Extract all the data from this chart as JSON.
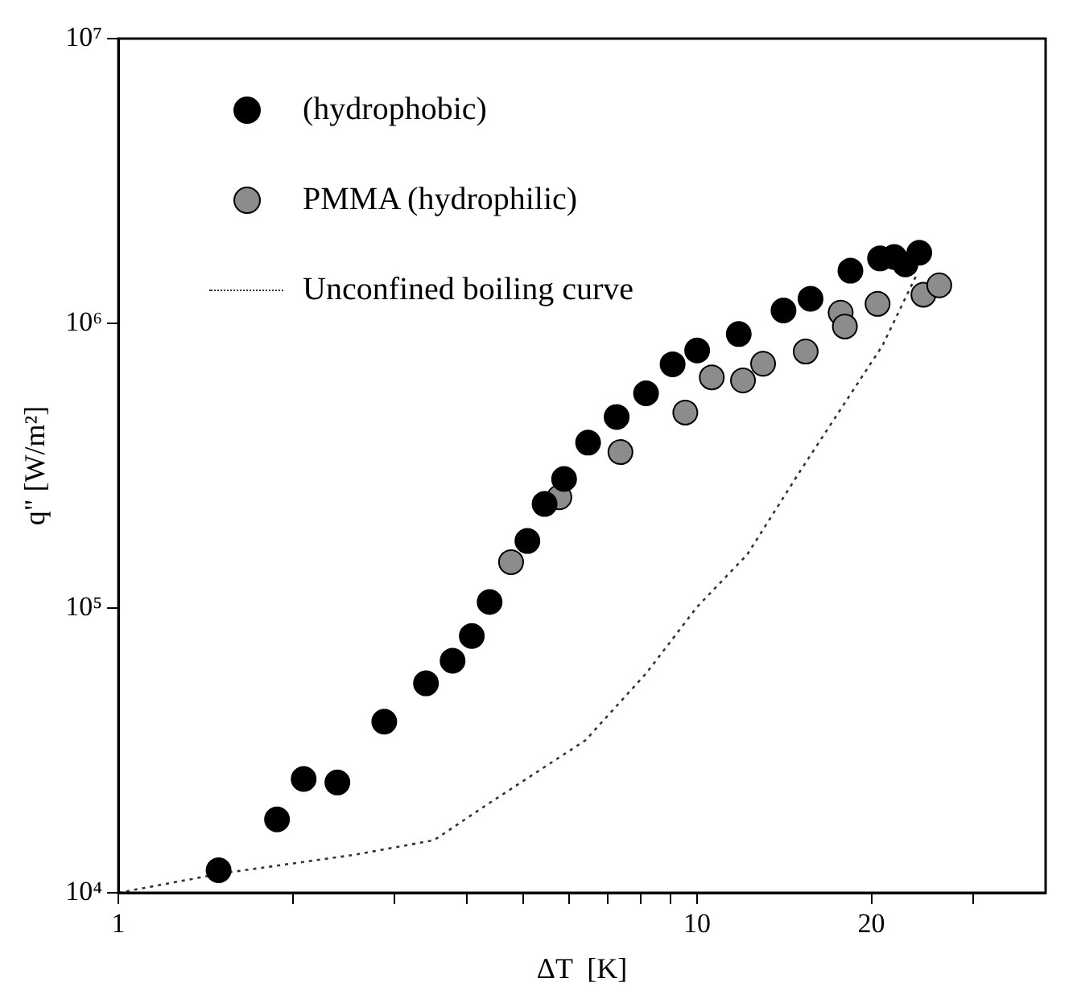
{
  "chart_data": {
    "type": "scatter",
    "xlabel": "ΔT  [K]",
    "ylabel": "q\" [W/m²]",
    "log": "xy",
    "xlim": [
      1,
      40
    ],
    "ylim": [
      10000,
      10000000
    ],
    "xticks": [
      1,
      {
        "value": 2,
        "label": null
      },
      {
        "value": 3,
        "label": null
      },
      {
        "value": 4,
        "label": null
      },
      {
        "value": 5,
        "label": null
      },
      {
        "value": 6,
        "label": null
      },
      {
        "value": 7,
        "label": null
      },
      {
        "value": 8,
        "label": null
      },
      {
        "value": 9,
        "label": null
      },
      10,
      20,
      {
        "value": 30,
        "label": null
      }
    ],
    "yticks": [
      {
        "value": 10000,
        "label": "10⁴"
      },
      {
        "value": 100000,
        "label": "10⁵"
      },
      {
        "value": 1000000,
        "label": "10⁶"
      },
      {
        "value": 10000000,
        "label": "10⁷"
      }
    ],
    "grid": false,
    "legend": "top left",
    "marker": "circle",
    "series": [
      {
        "name": "(hydrophobic)",
        "color": "#000000",
        "x": [
          1.49,
          1.88,
          2.09,
          2.39,
          2.88,
          3.4,
          3.78,
          4.08,
          4.38,
          5.09,
          5.45,
          5.89,
          6.48,
          7.26,
          8.16,
          9.07,
          10.0,
          11.8,
          14.1,
          15.7,
          18.4,
          20.7,
          21.9,
          22.9,
          24.2
        ],
        "values": [
          12000,
          18100,
          25100,
          24400,
          39900,
          54400,
          65300,
          79800,
          105000,
          172000,
          232000,
          284000,
          381000,
          469000,
          568000,
          718000,
          803000,
          917000,
          1110000,
          1220000,
          1530000,
          1690000,
          1710000,
          1610000,
          1770000
        ]
      },
      {
        "name": "PMMA (hydrophilic)",
        "color": "#8c8c8c",
        "x": [
          4.77,
          5.78,
          7.37,
          9.54,
          10.6,
          12.0,
          13.0,
          15.4,
          17.7,
          18.0,
          20.5,
          24.6,
          26.2
        ],
        "values": [
          145000,
          245000,
          353000,
          486000,
          646000,
          630000,
          721000,
          796000,
          1090000,
          975000,
          1170000,
          1260000,
          1360000
        ]
      },
      {
        "name": "Unconfined boiling curve",
        "type": "line",
        "color": "#333333",
        "marker": "none",
        "line_style": "dotted",
        "x": [
          1.0,
          1.51,
          2.56,
          3.51,
          4.35,
          6.41,
          8.16,
          10.0,
          12.2,
          15.1,
          18.1,
          20.9,
          23.9
        ],
        "values": [
          10000,
          11700,
          13600,
          15300,
          20500,
          34300,
          58900,
          101000,
          154000,
          305000,
          535000,
          835000,
          1470000
        ]
      }
    ]
  }
}
